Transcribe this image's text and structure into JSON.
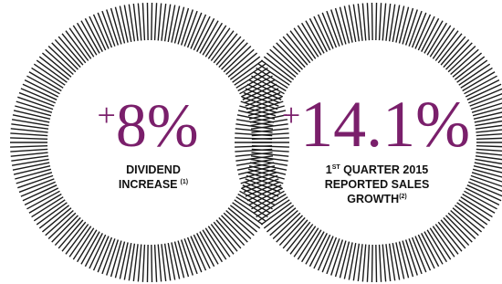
{
  "stats": [
    {
      "prefix": "+",
      "value": "8%",
      "label_lines": [
        "DIVIDEND",
        "INCREASE"
      ],
      "note": "(1)"
    },
    {
      "prefix": "+",
      "value": "14.1%",
      "label_lines": [
        {
          "number": "1",
          "suffix": "ST",
          "rest": " QUARTER 2015"
        },
        "REPORTED SALES",
        "GROWTH"
      ],
      "note": "(2)"
    }
  ]
}
